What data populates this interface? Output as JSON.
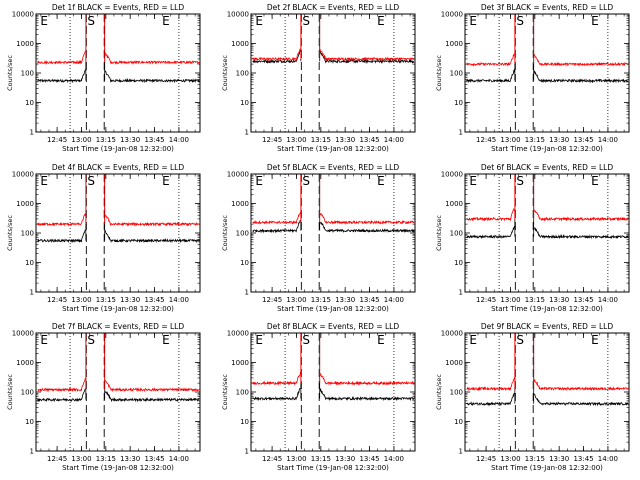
{
  "figure": {
    "xlabel": "Start Time (19-Jan-08 12:32:00)",
    "ylabel": "Counts/sec",
    "ytick_labels": [
      "1",
      "10",
      "100",
      "1000",
      "10000"
    ],
    "colors": {
      "events": "#000000",
      "lld": "#ff0000",
      "background": "#ffffff"
    },
    "markers": {
      "earth": "E",
      "saa": "S"
    }
  },
  "chart_data": [
    {
      "type": "line",
      "title": "Det 1f BLACK = Events, RED = LLD",
      "x_ticks": [
        "12:45",
        "13:00",
        "13:15",
        "13:30",
        "13:45",
        "14:00"
      ],
      "yscale": "log",
      "ylim": [
        1,
        10000
      ],
      "series": [
        {
          "name": "Events",
          "color": "#000000",
          "level": 55
        },
        {
          "name": "LLD",
          "color": "#ff0000",
          "level": 230
        }
      ],
      "saa_dashes": [
        "13:03",
        "13:14"
      ],
      "dotted_lines": [
        "12:53",
        "14:00"
      ],
      "markers": [
        {
          "label": "E",
          "x": "12:37"
        },
        {
          "label": "S",
          "x": "13:06"
        },
        {
          "label": "E",
          "x": "13:52"
        }
      ]
    },
    {
      "type": "line",
      "title": "Det 2f BLACK = Events, RED = LLD",
      "x_ticks": [
        "12:45",
        "13:00",
        "13:15",
        "13:30",
        "13:45",
        "14:00"
      ],
      "yscale": "log",
      "ylim": [
        1,
        10000
      ],
      "series": [
        {
          "name": "Events",
          "color": "#000000",
          "level": 250
        },
        {
          "name": "LLD",
          "color": "#ff0000",
          "level": 300
        }
      ],
      "saa_dashes": [
        "13:03",
        "13:14"
      ],
      "dotted_lines": [
        "12:53",
        "14:00"
      ],
      "markers": [
        {
          "label": "E",
          "x": "12:37"
        },
        {
          "label": "S",
          "x": "13:06"
        },
        {
          "label": "E",
          "x": "13:52"
        }
      ]
    },
    {
      "type": "line",
      "title": "Det 3f BLACK = Events, RED = LLD",
      "x_ticks": [
        "12:45",
        "13:00",
        "13:15",
        "13:30",
        "13:45",
        "14:00"
      ],
      "yscale": "log",
      "ylim": [
        1,
        10000
      ],
      "series": [
        {
          "name": "Events",
          "color": "#000000",
          "level": 55
        },
        {
          "name": "LLD",
          "color": "#ff0000",
          "level": 200
        }
      ],
      "saa_dashes": [
        "13:03",
        "13:14"
      ],
      "dotted_lines": [
        "12:53",
        "14:00"
      ],
      "markers": [
        {
          "label": "E",
          "x": "12:37"
        },
        {
          "label": "S",
          "x": "13:06"
        },
        {
          "label": "E",
          "x": "13:52"
        }
      ]
    },
    {
      "type": "line",
      "title": "Det 4f BLACK = Events, RED = LLD",
      "x_ticks": [
        "12:45",
        "13:00",
        "13:15",
        "13:30",
        "13:45",
        "14:00"
      ],
      "yscale": "log",
      "ylim": [
        1,
        10000
      ],
      "series": [
        {
          "name": "Events",
          "color": "#000000",
          "level": 55
        },
        {
          "name": "LLD",
          "color": "#ff0000",
          "level": 200
        }
      ],
      "saa_dashes": [
        "13:03",
        "13:14"
      ],
      "dotted_lines": [
        "12:53",
        "14:00"
      ],
      "markers": [
        {
          "label": "E",
          "x": "12:37"
        },
        {
          "label": "S",
          "x": "13:06"
        },
        {
          "label": "E",
          "x": "13:52"
        }
      ]
    },
    {
      "type": "line",
      "title": "Det 5f BLACK = Events, RED = LLD",
      "x_ticks": [
        "12:45",
        "13:00",
        "13:15",
        "13:30",
        "13:45",
        "14:00"
      ],
      "yscale": "log",
      "ylim": [
        1,
        10000
      ],
      "series": [
        {
          "name": "Events",
          "color": "#000000",
          "level": 120
        },
        {
          "name": "LLD",
          "color": "#ff0000",
          "level": 230
        }
      ],
      "saa_dashes": [
        "13:03",
        "13:14"
      ],
      "dotted_lines": [
        "12:53",
        "14:00"
      ],
      "markers": [
        {
          "label": "E",
          "x": "12:37"
        },
        {
          "label": "S",
          "x": "13:06"
        },
        {
          "label": "E",
          "x": "13:52"
        }
      ]
    },
    {
      "type": "line",
      "title": "Det 6f BLACK = Events, RED = LLD",
      "x_ticks": [
        "12:45",
        "13:00",
        "13:15",
        "13:30",
        "13:45",
        "14:00"
      ],
      "yscale": "log",
      "ylim": [
        1,
        10000
      ],
      "series": [
        {
          "name": "Events",
          "color": "#000000",
          "level": 75
        },
        {
          "name": "LLD",
          "color": "#ff0000",
          "level": 300
        }
      ],
      "saa_dashes": [
        "13:03",
        "13:14"
      ],
      "dotted_lines": [
        "12:53",
        "14:00"
      ],
      "markers": [
        {
          "label": "E",
          "x": "12:37"
        },
        {
          "label": "S",
          "x": "13:06"
        },
        {
          "label": "E",
          "x": "13:52"
        }
      ]
    },
    {
      "type": "line",
      "title": "Det 7f BLACK = Events, RED = LLD",
      "x_ticks": [
        "12:45",
        "13:00",
        "13:15",
        "13:30",
        "13:45",
        "14:00"
      ],
      "yscale": "log",
      "ylim": [
        1,
        10000
      ],
      "series": [
        {
          "name": "Events",
          "color": "#000000",
          "level": 55
        },
        {
          "name": "LLD",
          "color": "#ff0000",
          "level": 120
        }
      ],
      "saa_dashes": [
        "13:03",
        "13:14"
      ],
      "dotted_lines": [
        "12:53",
        "14:00"
      ],
      "markers": [
        {
          "label": "E",
          "x": "12:37"
        },
        {
          "label": "S",
          "x": "13:06"
        },
        {
          "label": "E",
          "x": "13:52"
        }
      ]
    },
    {
      "type": "line",
      "title": "Det 8f BLACK = Events, RED = LLD",
      "x_ticks": [
        "12:45",
        "13:00",
        "13:15",
        "13:30",
        "13:45",
        "14:00"
      ],
      "yscale": "log",
      "ylim": [
        1,
        10000
      ],
      "series": [
        {
          "name": "Events",
          "color": "#000000",
          "level": 60
        },
        {
          "name": "LLD",
          "color": "#ff0000",
          "level": 200
        }
      ],
      "saa_dashes": [
        "13:03",
        "13:14"
      ],
      "dotted_lines": [
        "12:53",
        "14:00"
      ],
      "markers": [
        {
          "label": "E",
          "x": "12:37"
        },
        {
          "label": "S",
          "x": "13:06"
        },
        {
          "label": "E",
          "x": "13:52"
        }
      ]
    },
    {
      "type": "line",
      "title": "Det 9f BLACK = Events, RED = LLD",
      "x_ticks": [
        "12:45",
        "13:00",
        "13:15",
        "13:30",
        "13:45",
        "14:00"
      ],
      "yscale": "log",
      "ylim": [
        1,
        10000
      ],
      "series": [
        {
          "name": "Events",
          "color": "#000000",
          "level": 40
        },
        {
          "name": "LLD",
          "color": "#ff0000",
          "level": 130
        }
      ],
      "saa_dashes": [
        "13:03",
        "13:14"
      ],
      "dotted_lines": [
        "12:53",
        "14:00"
      ],
      "markers": [
        {
          "label": "E",
          "x": "12:37"
        },
        {
          "label": "S",
          "x": "13:06"
        },
        {
          "label": "E",
          "x": "13:52"
        }
      ]
    }
  ]
}
